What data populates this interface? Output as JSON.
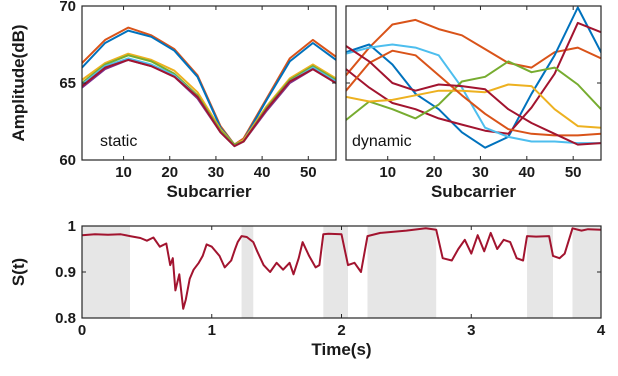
{
  "chart_data": [
    {
      "type": "line",
      "annotation": "static",
      "xlabel": "Subcarrier",
      "ylabel": "Amplitude(dB)",
      "xlim": [
        1,
        56
      ],
      "ylim": [
        60,
        70
      ],
      "xticks": [
        10,
        20,
        30,
        40,
        50
      ],
      "yticks": [
        60,
        65,
        70
      ],
      "grid": false,
      "x": [
        1,
        6,
        11,
        16,
        21,
        26,
        31,
        34,
        36,
        41,
        46,
        51,
        56
      ],
      "series": [
        {
          "color": "#d95319",
          "values": [
            66.3,
            67.8,
            68.6,
            68.1,
            67.2,
            65.5,
            62.2,
            61.0,
            61.4,
            64.0,
            66.6,
            67.8,
            66.7
          ]
        },
        {
          "color": "#0072bd",
          "values": [
            66.0,
            67.6,
            68.4,
            68.0,
            67.1,
            65.4,
            62.1,
            61.0,
            61.3,
            63.9,
            66.4,
            67.6,
            66.5
          ]
        },
        {
          "color": "#edb120",
          "values": [
            65.2,
            66.3,
            66.9,
            66.5,
            65.8,
            64.4,
            62.0,
            61.0,
            61.3,
            63.5,
            65.3,
            66.2,
            65.3
          ]
        },
        {
          "color": "#7e2f8e",
          "values": [
            64.7,
            65.9,
            66.5,
            66.1,
            65.4,
            64.0,
            61.8,
            60.9,
            61.2,
            63.2,
            65.0,
            65.9,
            65.0
          ]
        },
        {
          "color": "#77ac30",
          "values": [
            65.0,
            66.2,
            66.8,
            66.4,
            65.6,
            64.2,
            61.9,
            61.0,
            61.2,
            63.4,
            65.2,
            66.1,
            65.2
          ]
        },
        {
          "color": "#4dbeee",
          "values": [
            64.9,
            66.1,
            66.6,
            66.2,
            65.5,
            64.1,
            61.8,
            60.9,
            61.2,
            63.3,
            65.1,
            66.0,
            65.1
          ]
        },
        {
          "color": "#a2142f",
          "values": [
            64.8,
            66.0,
            66.5,
            66.1,
            65.4,
            64.1,
            61.8,
            60.9,
            61.2,
            63.3,
            65.1,
            65.9,
            65.0
          ]
        }
      ]
    },
    {
      "type": "line",
      "annotation": "dynamic",
      "xlabel": "Subcarrier",
      "ylabel": "",
      "xlim": [
        1,
        56
      ],
      "ylim": [
        60,
        70
      ],
      "xticks": [
        10,
        20,
        30,
        40,
        50
      ],
      "yticks": [
        60,
        65,
        70
      ],
      "grid": false,
      "x": [
        1,
        6,
        11,
        16,
        21,
        26,
        31,
        36,
        41,
        46,
        51,
        56
      ],
      "series": [
        {
          "color": "#d95319",
          "values": [
            65.5,
            67.3,
            68.8,
            69.1,
            68.5,
            68.1,
            67.2,
            66.3,
            66.0,
            67.0,
            67.3,
            66.6
          ]
        },
        {
          "color": "#0072bd",
          "values": [
            67.0,
            67.5,
            66.2,
            64.3,
            63.3,
            61.8,
            60.8,
            61.5,
            64.3,
            66.8,
            69.9,
            67.0
          ]
        },
        {
          "color": "#a2142f",
          "values": [
            65.9,
            64.7,
            63.7,
            63.3,
            62.7,
            62.3,
            61.9,
            61.7,
            63.4,
            65.6,
            68.9,
            68.3
          ]
        },
        {
          "color": "#4dbeee",
          "values": [
            66.9,
            67.3,
            67.5,
            67.3,
            66.8,
            64.7,
            62.1,
            61.5,
            61.2,
            61.2,
            61.1,
            61.1
          ]
        },
        {
          "color": "#77ac30",
          "values": [
            62.6,
            63.8,
            63.3,
            62.7,
            63.6,
            65.1,
            65.4,
            66.4,
            65.7,
            66.0,
            64.9,
            63.3
          ]
        },
        {
          "color": "#edb120",
          "values": [
            64.1,
            63.8,
            63.9,
            64.2,
            64.5,
            64.5,
            64.4,
            64.9,
            64.8,
            63.3,
            62.2,
            62.1
          ]
        },
        {
          "color": "#d95319",
          "values": [
            64.5,
            66.3,
            67.1,
            66.8,
            65.5,
            64.2,
            63.0,
            62.0,
            61.7,
            61.6,
            61.6,
            61.7
          ]
        },
        {
          "color": "#a2142f",
          "values": [
            67.4,
            66.4,
            65.0,
            64.5,
            64.9,
            64.8,
            64.6,
            63.3,
            62.4,
            61.7,
            61.0,
            61.1
          ]
        }
      ]
    },
    {
      "type": "line",
      "annotation": "",
      "xlabel": "Time(s)",
      "ylabel": "S(t)",
      "xlim": [
        0,
        4
      ],
      "ylim": [
        0.8,
        1.0
      ],
      "xticks": [
        0,
        1,
        2,
        3,
        4
      ],
      "yticks": [
        0.8,
        0.9,
        1
      ],
      "grid": false,
      "shaded_intervals": [
        [
          0,
          0.37
        ],
        [
          1.23,
          1.32
        ],
        [
          1.86,
          2.05
        ],
        [
          2.2,
          2.73
        ],
        [
          3.43,
          3.63
        ],
        [
          3.78,
          4.0
        ]
      ],
      "shade_color": "#e6e6e6",
      "series": [
        {
          "color": "#a2142f",
          "x": [
            0.0,
            0.1,
            0.2,
            0.3,
            0.37,
            0.45,
            0.5,
            0.55,
            0.6,
            0.65,
            0.68,
            0.7,
            0.72,
            0.75,
            0.78,
            0.8,
            0.83,
            0.86,
            0.9,
            0.93,
            0.96,
            1.0,
            1.03,
            1.06,
            1.1,
            1.15,
            1.18,
            1.2,
            1.23,
            1.27,
            1.32,
            1.35,
            1.4,
            1.45,
            1.5,
            1.55,
            1.6,
            1.63,
            1.67,
            1.7,
            1.75,
            1.8,
            1.83,
            1.86,
            1.9,
            2.0,
            2.05,
            2.1,
            2.15,
            2.2,
            2.3,
            2.5,
            2.65,
            2.73,
            2.78,
            2.85,
            2.9,
            2.95,
            3.0,
            3.05,
            3.1,
            3.15,
            3.2,
            3.25,
            3.3,
            3.35,
            3.4,
            3.43,
            3.5,
            3.6,
            3.63,
            3.68,
            3.72,
            3.78,
            3.85,
            3.9,
            4.0
          ],
          "values": [
            0.98,
            0.982,
            0.981,
            0.982,
            0.978,
            0.974,
            0.968,
            0.975,
            0.955,
            0.962,
            0.915,
            0.93,
            0.86,
            0.895,
            0.82,
            0.84,
            0.885,
            0.905,
            0.92,
            0.935,
            0.96,
            0.955,
            0.945,
            0.935,
            0.91,
            0.925,
            0.95,
            0.965,
            0.978,
            0.976,
            0.965,
            0.945,
            0.915,
            0.9,
            0.92,
            0.905,
            0.92,
            0.895,
            0.93,
            0.965,
            0.935,
            0.91,
            0.915,
            0.982,
            0.983,
            0.982,
            0.915,
            0.92,
            0.9,
            0.978,
            0.985,
            0.99,
            0.995,
            0.992,
            0.93,
            0.925,
            0.95,
            0.97,
            0.94,
            0.98,
            0.945,
            0.985,
            0.95,
            0.97,
            0.965,
            0.93,
            0.925,
            0.978,
            0.977,
            0.978,
            0.935,
            0.93,
            0.94,
            0.995,
            0.99,
            0.993,
            0.992
          ]
        }
      ]
    }
  ]
}
